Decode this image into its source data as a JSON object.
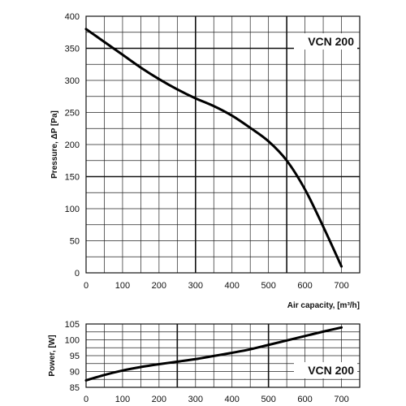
{
  "chart_data": [
    {
      "type": "line",
      "ylabel": "Pressure, ΔP [Pa]",
      "xlabel": "Air capacity, [m³/h]",
      "xlim": [
        0,
        750
      ],
      "ylim": [
        0,
        400
      ],
      "x_ticks": [
        "0",
        "100",
        "200",
        "300",
        "400",
        "500",
        "600",
        "700"
      ],
      "y_ticks": [
        "0",
        "50",
        "100",
        "150",
        "200",
        "250",
        "300",
        "350",
        "400"
      ],
      "x_minor_step": 50,
      "y_minor_step": 25,
      "x_major_lines": [
        300,
        550
      ],
      "y_major_lines": [
        150,
        350
      ],
      "annotation": "VCN 200",
      "series": [
        {
          "x": [
            0,
            50,
            100,
            150,
            200,
            250,
            300,
            350,
            400,
            450,
            500,
            550,
            600,
            650,
            700
          ],
          "y": [
            380,
            360,
            340,
            320,
            302,
            286,
            272,
            260,
            245,
            226,
            205,
            175,
            130,
            72,
            10
          ]
        }
      ]
    },
    {
      "type": "line",
      "ylabel": "Power, [W]",
      "xlabel": "",
      "xlim": [
        0,
        750
      ],
      "ylim": [
        85,
        105
      ],
      "x_ticks": [
        "0",
        "100",
        "200",
        "300",
        "400",
        "500",
        "600",
        "700"
      ],
      "y_ticks": [
        "85",
        "90",
        "95",
        "100",
        "105"
      ],
      "x_minor_step": 50,
      "y_minor_step": 2.5,
      "x_major_lines": [
        250,
        500
      ],
      "y_major_lines": [],
      "annotation": "VCN 200",
      "series": [
        {
          "x": [
            0,
            50,
            100,
            150,
            200,
            250,
            300,
            350,
            400,
            450,
            500,
            550,
            600,
            650,
            700
          ],
          "y": [
            87.2,
            88.9,
            90.3,
            91.4,
            92.3,
            93.1,
            93.9,
            94.9,
            95.9,
            97.0,
            98.4,
            99.8,
            101.2,
            102.6,
            103.9
          ]
        }
      ]
    }
  ]
}
